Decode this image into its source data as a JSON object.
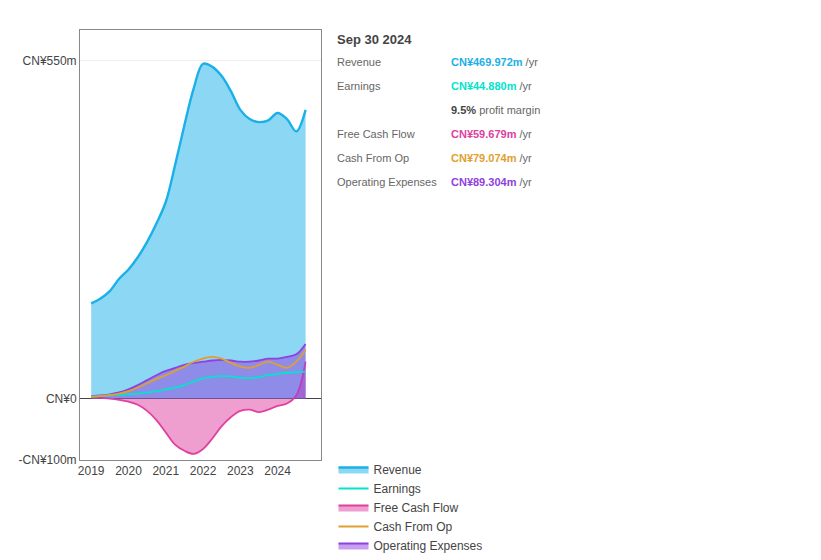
{
  "chart_data": {
    "type": "area",
    "x": [
      2019.0,
      2019.25,
      2019.5,
      2019.75,
      2020.0,
      2020.25,
      2020.5,
      2020.75,
      2021.0,
      2021.25,
      2021.5,
      2021.75,
      2022.0,
      2022.25,
      2022.5,
      2022.75,
      2023.0,
      2023.25,
      2023.5,
      2023.75,
      2024.0,
      2024.25,
      2024.5,
      2024.75
    ],
    "xlim": [
      2018.7,
      2025.15
    ],
    "xticks": [
      2019,
      2020,
      2021,
      2022,
      2023,
      2024
    ],
    "ylim": [
      -100,
      600
    ],
    "yticks": [
      {
        "value": -100,
        "label": "-CN¥100m"
      },
      {
        "value": 0,
        "label": "CN¥0"
      },
      {
        "value": 550,
        "label": "CN¥550m"
      }
    ],
    "grid": "y",
    "legend": "bottom",
    "series": [
      {
        "name": "Revenue",
        "color": "#1ab0e8",
        "type": "area",
        "values": [
          155,
          163,
          175,
          195,
          210,
          230,
          255,
          285,
          320,
          380,
          445,
          505,
          545,
          540,
          525,
          500,
          470,
          455,
          450,
          453,
          465,
          455,
          435,
          470
        ]
      },
      {
        "name": "Earnings",
        "color": "#00e5cc",
        "type": "line",
        "values": [
          3,
          4,
          5,
          6,
          7,
          8,
          10,
          12,
          15,
          18,
          22,
          28,
          33,
          35,
          37,
          36,
          34,
          33,
          35,
          38,
          40,
          42,
          43,
          44
        ]
      },
      {
        "name": "Free Cash Flow",
        "color": "#e040a0",
        "type": "area",
        "values": [
          2,
          1,
          0,
          -2,
          -5,
          -10,
          -20,
          -35,
          -55,
          -75,
          -85,
          -90,
          -82,
          -65,
          -45,
          -30,
          -20,
          -18,
          -22,
          -18,
          -12,
          -8,
          5,
          60
        ]
      },
      {
        "name": "Cash From Op",
        "color": "#e0a030",
        "type": "line",
        "values": [
          3,
          4,
          6,
          8,
          12,
          18,
          25,
          32,
          38,
          45,
          52,
          60,
          65,
          68,
          65,
          58,
          52,
          50,
          55,
          60,
          55,
          50,
          60,
          79
        ]
      },
      {
        "name": "Operating Expenses",
        "color": "#9040e0",
        "type": "area",
        "values": [
          4,
          5,
          7,
          10,
          15,
          22,
          30,
          38,
          45,
          50,
          55,
          58,
          60,
          62,
          63,
          62,
          60,
          60,
          62,
          65,
          65,
          68,
          72,
          89
        ]
      }
    ],
    "annotations": [
      {
        "text": "Sep 30 2024"
      },
      {
        "label": "Revenue",
        "text": "CN¥469.972m",
        "suffix": " /yr",
        "color": "#1ab0e8"
      },
      {
        "label": "Earnings",
        "text": "CN¥44.880m",
        "suffix": " /yr",
        "color": "#00e5cc"
      },
      {
        "text": "9.5%",
        "suffix": " profit margin"
      },
      {
        "label": "Free Cash Flow",
        "text": "CN¥59.679m",
        "suffix": " /yr",
        "color": "#e040a0"
      },
      {
        "label": "Cash From Op",
        "text": "CN¥79.074m",
        "suffix": " /yr",
        "color": "#e0a030"
      },
      {
        "label": "Operating Expenses",
        "text": "CN¥89.304m",
        "suffix": " /yr",
        "color": "#9040e0"
      }
    ]
  }
}
